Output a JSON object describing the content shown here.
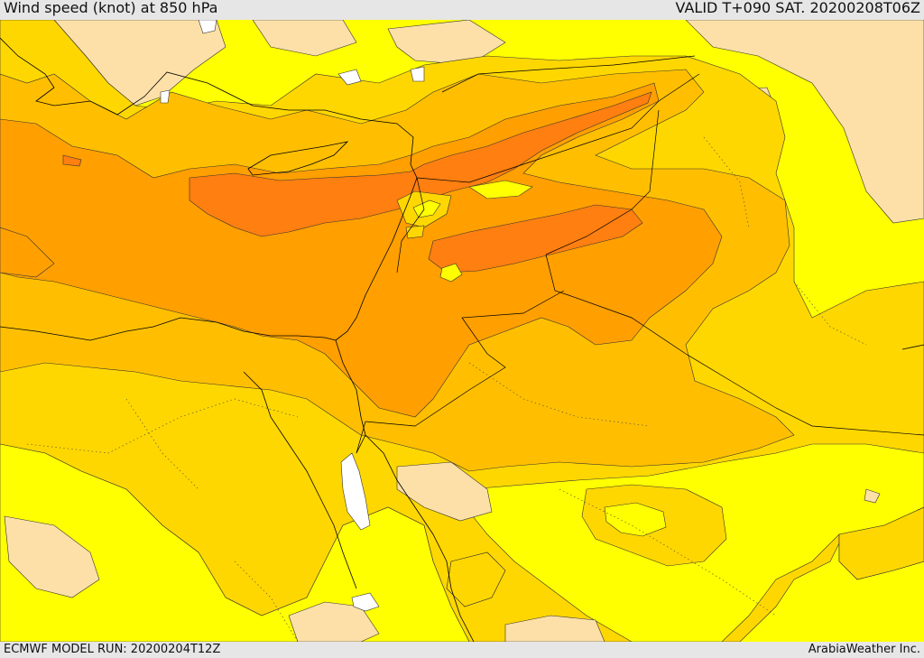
{
  "header": {
    "title": "Wind speed (knot) at 850 hPa",
    "valid": "VALID T+090 SAT. 20200208T06Z"
  },
  "footer": {
    "model_run": "ECMWF MODEL RUN: 20200204T12Z",
    "credit": "ArabiaWeather Inc."
  },
  "map": {
    "variable": "wind speed at 850 hPa",
    "region": "Eastern Mediterranean / Levant / Northern Arabia",
    "shading_colors": {
      "lowest": "#fde0a8",
      "low": "#ffff00",
      "moderate": "#ffd700",
      "high": "#ffbf00",
      "very_high": "#ff9f00",
      "highest": "#ff7f10",
      "land_white": "#ffffff"
    }
  }
}
